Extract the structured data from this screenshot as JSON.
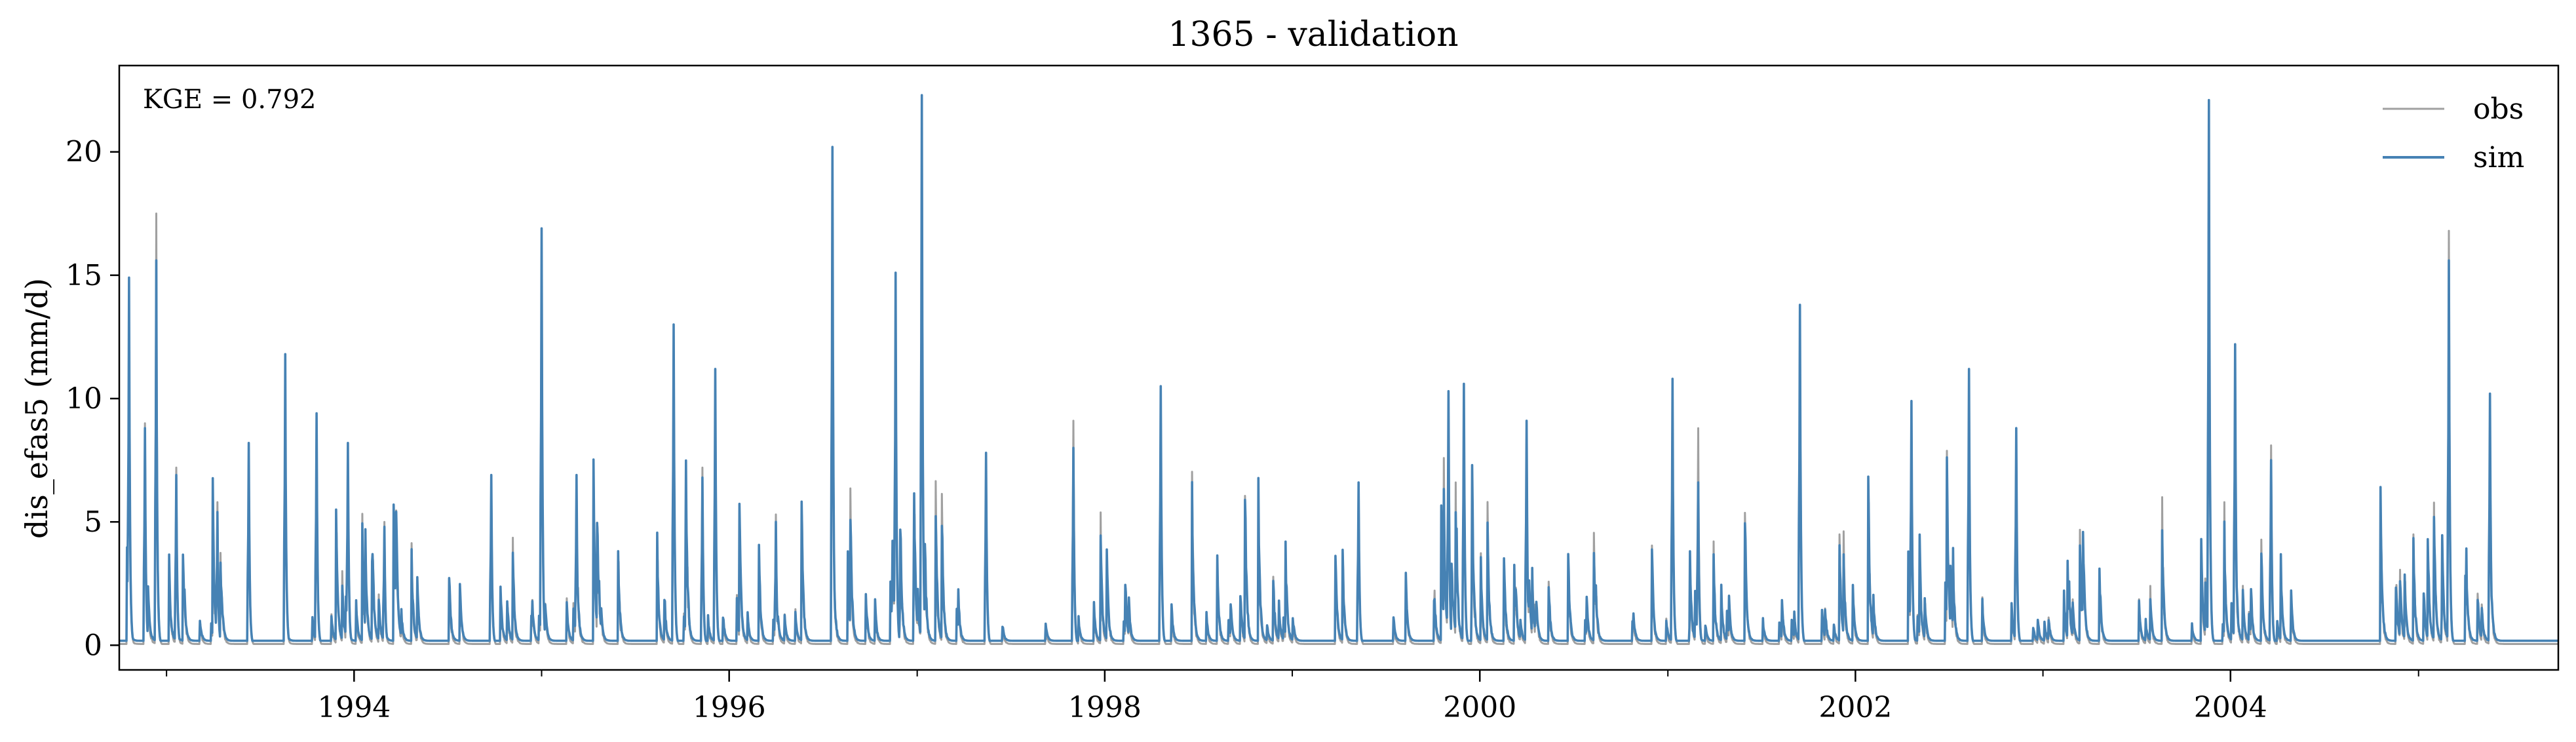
{
  "chart_data": {
    "type": "line",
    "title": "1365 - validation",
    "xlabel": "",
    "ylabel": "dis_efas5 (mm/d)",
    "xlim": [
      "1992-10-01",
      "2005-09-30"
    ],
    "ylim": [
      -1.0,
      23.5
    ],
    "x_ticks": [
      "1994",
      "1996",
      "1998",
      "2000",
      "2002",
      "2004"
    ],
    "y_ticks": [
      "0",
      "5",
      "10",
      "15",
      "20"
    ],
    "annotation": "KGE = 0.792",
    "legend_position": "top-right",
    "grid": false,
    "colors": {
      "obs": "#a0a0a0",
      "sim": "#4682b4"
    },
    "peaks_date_format": "YYYY-MM-DD",
    "series": [
      {
        "name": "obs",
        "peaks": [
          [
            "1992-10-20",
            14.0
          ],
          [
            "1992-11-20",
            9.0
          ],
          [
            "1992-12-12",
            17.5
          ],
          [
            "1993-01-20",
            7.2
          ],
          [
            "1993-04-10",
            5.8
          ],
          [
            "1993-06-10",
            8.0
          ],
          [
            "1993-08-20",
            11.5
          ],
          [
            "1993-10-20",
            9.0
          ],
          [
            "1993-12-20",
            8.0
          ],
          [
            "1994-03-01",
            5.0
          ],
          [
            "1994-09-25",
            6.8
          ],
          [
            "1995-01-01",
            16.5
          ],
          [
            "1995-03-10",
            6.8
          ],
          [
            "1995-09-15",
            12.8
          ],
          [
            "1995-11-10",
            7.2
          ],
          [
            "1995-12-05",
            11.0
          ],
          [
            "1996-04-01",
            5.3
          ],
          [
            "1996-07-20",
            19.8
          ],
          [
            "1996-11-20",
            14.8
          ],
          [
            "1997-01-10",
            22.0
          ],
          [
            "1997-05-15",
            7.6
          ],
          [
            "1997-11-01",
            9.1
          ],
          [
            "1998-04-20",
            10.3
          ],
          [
            "1999-05-10",
            6.6
          ],
          [
            "1999-11-01",
            10.0
          ],
          [
            "1999-12-01",
            10.4
          ],
          [
            "2000-04-01",
            9.0
          ],
          [
            "2001-01-10",
            10.6
          ],
          [
            "2001-03-01",
            8.8
          ],
          [
            "2001-09-15",
            13.6
          ],
          [
            "2002-04-20",
            9.7
          ],
          [
            "2002-08-10",
            11.0
          ],
          [
            "2002-11-10",
            8.6
          ],
          [
            "2003-11-20",
            22.0
          ],
          [
            "2004-01-10",
            12.0
          ],
          [
            "2004-03-20",
            8.1
          ],
          [
            "2005-03-01",
            16.8
          ],
          [
            "2005-05-20",
            10.0
          ]
        ]
      },
      {
        "name": "sim",
        "peaks": [
          [
            "1992-10-20",
            14.9
          ],
          [
            "1992-11-20",
            8.8
          ],
          [
            "1992-12-12",
            15.6
          ],
          [
            "1993-01-20",
            6.9
          ],
          [
            "1993-04-10",
            5.4
          ],
          [
            "1993-06-10",
            8.2
          ],
          [
            "1993-08-20",
            11.8
          ],
          [
            "1993-10-20",
            9.4
          ],
          [
            "1993-12-20",
            8.2
          ],
          [
            "1994-03-01",
            4.8
          ],
          [
            "1994-09-25",
            6.9
          ],
          [
            "1995-01-01",
            16.9
          ],
          [
            "1995-03-10",
            6.9
          ],
          [
            "1995-09-15",
            13.0
          ],
          [
            "1995-11-10",
            6.8
          ],
          [
            "1995-12-05",
            11.2
          ],
          [
            "1996-04-01",
            5.0
          ],
          [
            "1996-07-20",
            20.2
          ],
          [
            "1996-11-20",
            15.1
          ],
          [
            "1997-01-10",
            22.3
          ],
          [
            "1997-05-15",
            7.8
          ],
          [
            "1997-11-01",
            8.0
          ],
          [
            "1998-04-20",
            10.5
          ],
          [
            "1999-05-10",
            6.6
          ],
          [
            "1999-11-01",
            10.3
          ],
          [
            "1999-12-01",
            10.6
          ],
          [
            "2000-04-01",
            9.1
          ],
          [
            "2001-01-10",
            10.8
          ],
          [
            "2001-03-01",
            6.6
          ],
          [
            "2001-09-15",
            13.8
          ],
          [
            "2002-04-20",
            9.9
          ],
          [
            "2002-08-10",
            11.2
          ],
          [
            "2002-11-10",
            8.8
          ],
          [
            "2003-11-20",
            22.1
          ],
          [
            "2004-01-10",
            12.2
          ],
          [
            "2004-03-20",
            7.5
          ],
          [
            "2005-03-01",
            15.6
          ],
          [
            "2005-05-20",
            10.2
          ]
        ]
      }
    ]
  }
}
